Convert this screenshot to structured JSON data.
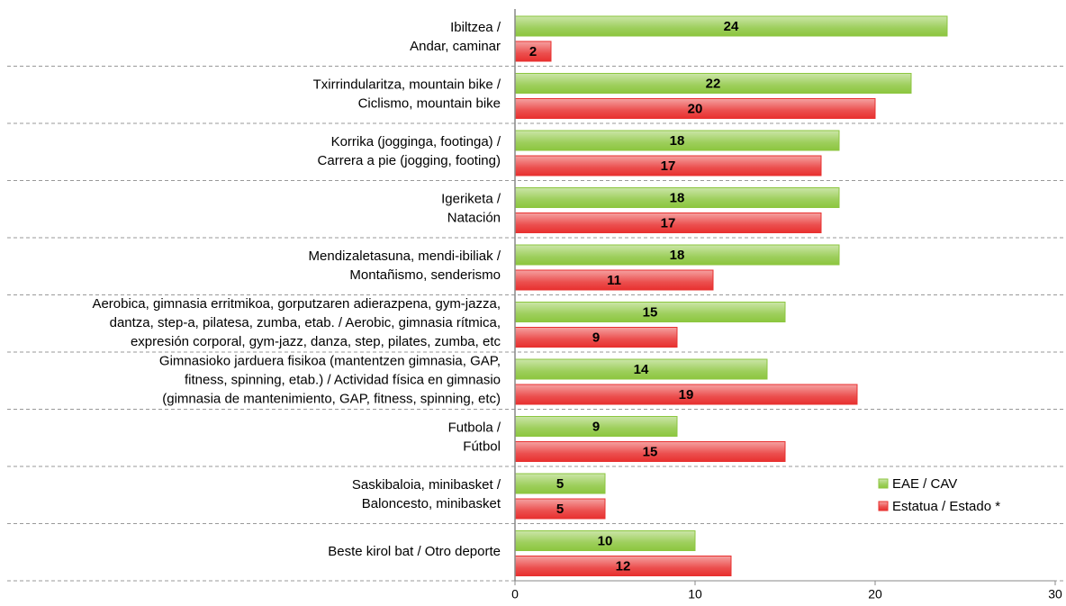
{
  "chart_data": {
    "type": "bar",
    "orientation": "horizontal",
    "categories": [
      [
        "Ibiltzea /",
        "Andar, caminar"
      ],
      [
        "Txirrindularitza, mountain bike /",
        "Ciclismo, mountain bike"
      ],
      [
        "Korrika (jogginga, footinga) /",
        "Carrera a pie (jogging, footing)"
      ],
      [
        "Igeriketa /",
        "Natación"
      ],
      [
        "Mendizaletasuna, mendi-ibiliak /",
        "Montañismo, senderismo"
      ],
      [
        "Aerobica, gimnasia erritmikoa, gorputzaren adierazpena, gym-jazza,",
        "dantza, step-a, pilatesa, zumba, etab. / Aerobic, gimnasia rítmica,",
        "expresión corporal, gym-jazz, danza, step, pilates, zumba, etc"
      ],
      [
        "Gimnasioko jarduera fisikoa (mantentzen gimnasia, GAP,",
        "fitness, spinning, etab.) / Actividad física en gimnasio",
        "(gimnasia de mantenimiento, GAP, fitness, spinning, etc)"
      ],
      [
        "Futbola /",
        "Fútbol"
      ],
      [
        "Saskibaloia, minibasket /",
        "Baloncesto, minibasket"
      ],
      [
        "Beste kirol bat / Otro deporte"
      ]
    ],
    "series": [
      {
        "name": "EAE / CAV",
        "color": "#8cc63f",
        "values": [
          24,
          22,
          18,
          18,
          18,
          15,
          14,
          9,
          5,
          10
        ]
      },
      {
        "name": "Estatua / Estado *",
        "color": "#e8302f",
        "values": [
          2,
          20,
          17,
          17,
          11,
          9,
          19,
          15,
          5,
          12
        ]
      }
    ],
    "xlim": [
      0,
      30
    ],
    "xticks": [
      0,
      10,
      20,
      30
    ],
    "legend": "lower right",
    "data_labels": true
  }
}
